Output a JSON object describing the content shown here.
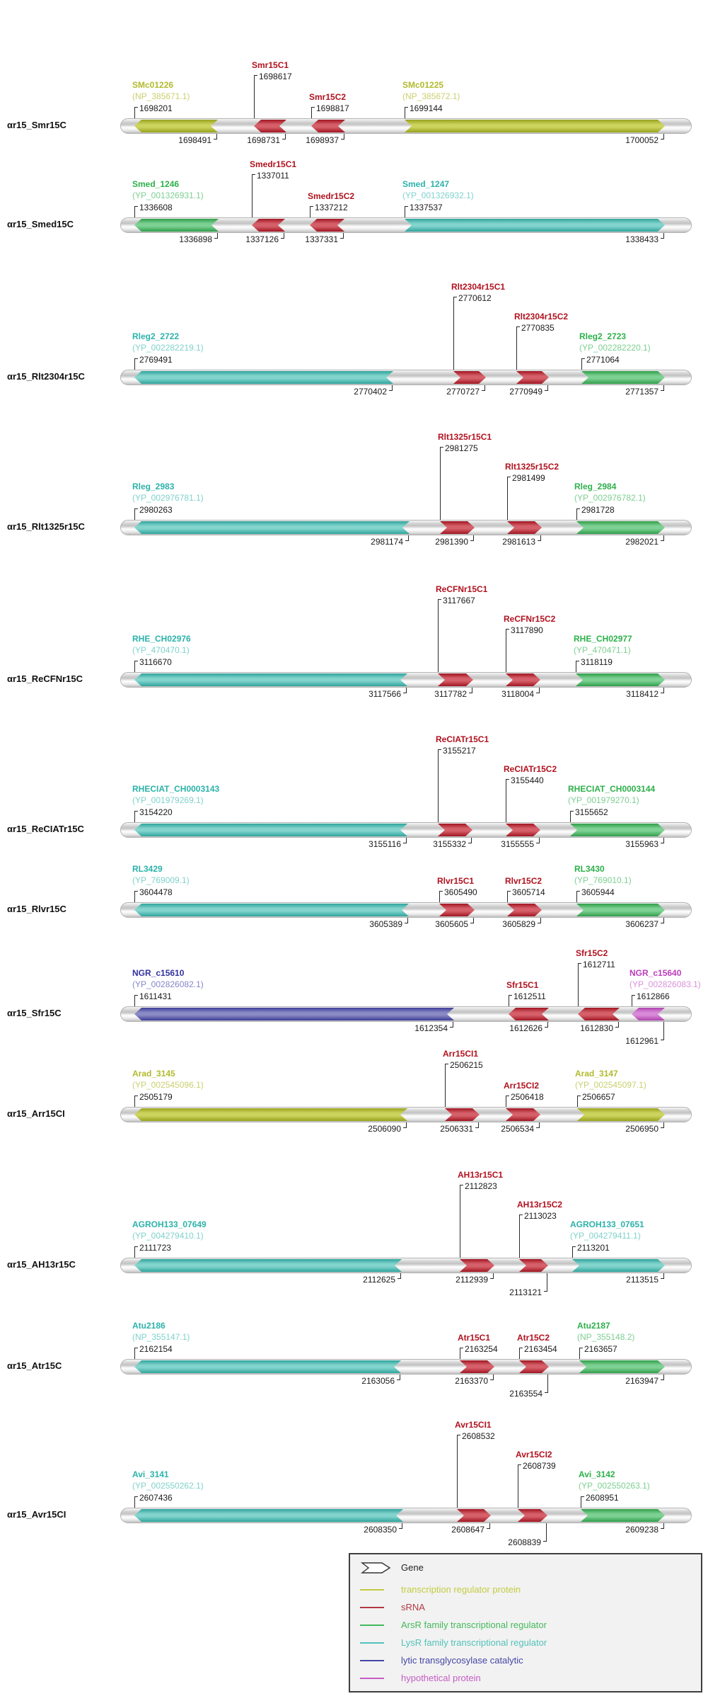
{
  "types": {
    "transcription_regulator": {
      "legend_label": "transcription regulator protein",
      "name_color": "#b2ba2e",
      "accession_color": "#c9d06e",
      "fill_light": "#ccd45e",
      "fill_dark": "#99a21d",
      "legend_color": "#c3cc3f"
    },
    "srna": {
      "legend_label": "sRNA",
      "name_color": "#b1121f",
      "accession_color": "#d17a81",
      "fill_light": "#d6606a",
      "fill_dark": "#a01622",
      "legend_color": "#b23842"
    },
    "arsr": {
      "legend_label": "ArsR family transcriptional regulator",
      "name_color": "#2eb04b",
      "accession_color": "#7dcf92",
      "fill_light": "#7ed194",
      "fill_dark": "#2f9e49",
      "legend_color": "#44b95c"
    },
    "lysr": {
      "legend_label": "LysR family transcriptional regulator",
      "name_color": "#2cb2aa",
      "accession_color": "#7fd2cb",
      "fill_light": "#82d4cd",
      "fill_dark": "#2fa49c",
      "legend_color": "#53c2ba"
    },
    "lytic": {
      "legend_label": "lytic transglycosylase catalytic",
      "name_color": "#3232a2",
      "accession_color": "#8686c8",
      "fill_light": "#8a8ac4",
      "fill_dark": "#3d3d9a",
      "legend_color": "#4646a6"
    },
    "hypothetical": {
      "legend_label": "hypothetical protein",
      "name_color": "#bc3ebc",
      "accession_color": "#d991d9",
      "fill_light": "#d98ad9",
      "fill_dark": "#b044b0",
      "legend_color": "#c55cc5"
    }
  },
  "legend": {
    "gene_label": "Gene",
    "order": [
      "transcription_regulator",
      "srna",
      "arsr",
      "lysr",
      "lytic",
      "hypothetical"
    ]
  },
  "rows": [
    {
      "label": "αr15_Smr15C",
      "genes": [
        {
          "name": "SMc01226",
          "accession": "(NP_385671.1)",
          "type": "transcription_regulator",
          "start": 1698201,
          "end": 1698491,
          "direction": "left",
          "label_tier": "gene"
        },
        {
          "name": "Smr15C1",
          "type": "srna",
          "start": 1698617,
          "end": 1698731,
          "direction": "left",
          "label_tier": "mid"
        },
        {
          "name": "Smr15C2",
          "type": "srna",
          "start": 1698817,
          "end": 1698937,
          "direction": "left",
          "label_tier": "low"
        },
        {
          "name": "SMc01225",
          "accession": "(NP_385672.1)",
          "type": "transcription_regulator",
          "start": 1699144,
          "end": 1700052,
          "direction": "right",
          "label_tier": "gene"
        }
      ]
    },
    {
      "label": "αr15_Smed15C",
      "genes": [
        {
          "name": "Smed_1246",
          "accession": "(YP_001326931.1)",
          "type": "arsr",
          "start": 1336608,
          "end": 1336898,
          "direction": "left",
          "label_tier": "gene"
        },
        {
          "name": "Smedr15C1",
          "type": "srna",
          "start": 1337011,
          "end": 1337126,
          "direction": "left",
          "label_tier": "mid"
        },
        {
          "name": "Smedr15C2",
          "type": "srna",
          "start": 1337212,
          "end": 1337331,
          "direction": "left",
          "label_tier": "low"
        },
        {
          "name": "Smed_1247",
          "accession": "(YP_001326932.1)",
          "type": "lysr",
          "start": 1337537,
          "end": 1338433,
          "direction": "right",
          "label_tier": "gene"
        }
      ]
    },
    {
      "label": "αr15_Rlt2304r15C",
      "genes": [
        {
          "name": "Rleg2_2722",
          "accession": "(YP_002282219.1)",
          "type": "lysr",
          "start": 2769491,
          "end": 2770402,
          "direction": "left",
          "label_tier": "gene"
        },
        {
          "name": "Rlt2304r15C1",
          "type": "srna",
          "start": 2770612,
          "end": 2770727,
          "direction": "right",
          "label_tier": "high"
        },
        {
          "name": "Rlt2304r15C2",
          "type": "srna",
          "start": 2770835,
          "end": 2770949,
          "direction": "right",
          "label_tier": "mid"
        },
        {
          "name": "Rleg2_2723",
          "accession": "(YP_002282220.1)",
          "type": "arsr",
          "start": 2771064,
          "end": 2771357,
          "direction": "right",
          "label_tier": "gene"
        }
      ]
    },
    {
      "label": "αr15_Rlt1325r15C",
      "genes": [
        {
          "name": "Rleg_2983",
          "accession": "(YP_002976781.1)",
          "type": "lysr",
          "start": 2980263,
          "end": 2981174,
          "direction": "left",
          "label_tier": "gene"
        },
        {
          "name": "Rlt1325r15C1",
          "type": "srna",
          "start": 2981275,
          "end": 2981390,
          "direction": "right",
          "label_tier": "high"
        },
        {
          "name": "Rlt1325r15C2",
          "type": "srna",
          "start": 2981499,
          "end": 2981613,
          "direction": "right",
          "label_tier": "mid"
        },
        {
          "name": "Rleg_2984",
          "accession": "(YP_002976782.1)",
          "type": "arsr",
          "start": 2981728,
          "end": 2982021,
          "direction": "right",
          "label_tier": "gene"
        }
      ]
    },
    {
      "label": "αr15_ReCFNr15C",
      "genes": [
        {
          "name": "RHE_CH02976",
          "accession": "(YP_470470.1)",
          "type": "lysr",
          "start": 3116670,
          "end": 3117566,
          "direction": "left",
          "label_tier": "gene"
        },
        {
          "name": "ReCFNr15C1",
          "type": "srna",
          "start": 3117667,
          "end": 3117782,
          "direction": "right",
          "label_tier": "high"
        },
        {
          "name": "ReCFNr15C2",
          "type": "srna",
          "start": 3117890,
          "end": 3118004,
          "direction": "right",
          "label_tier": "mid"
        },
        {
          "name": "RHE_CH02977",
          "accession": "(YP_470471.1)",
          "type": "arsr",
          "start": 3118119,
          "end": 3118412,
          "direction": "right",
          "label_tier": "gene"
        }
      ]
    },
    {
      "label": "αr15_ReCIATr15C",
      "genes": [
        {
          "name": "RHECIAT_CH0003143",
          "accession": "(YP_001979269.1)",
          "type": "lysr",
          "start": 3154220,
          "end": 3155116,
          "direction": "left",
          "label_tier": "gene"
        },
        {
          "name": "ReCIATr15C1",
          "type": "srna",
          "start": 3155217,
          "end": 3155332,
          "direction": "right",
          "label_tier": "high"
        },
        {
          "name": "ReCIATr15C2",
          "type": "srna",
          "start": 3155440,
          "end": 3155555,
          "direction": "right",
          "label_tier": "mid"
        },
        {
          "name": "RHECIAT_CH0003144",
          "accession": "(YP_001979270.1)",
          "type": "arsr",
          "start": 3155652,
          "end": 3155963,
          "direction": "right",
          "label_tier": "gene"
        }
      ]
    },
    {
      "label": "αr15_Rlvr15C",
      "genes": [
        {
          "name": "RL3429",
          "accession": "(YP_769009.1)",
          "type": "lysr",
          "start": 3604478,
          "end": 3605389,
          "direction": "left",
          "label_tier": "gene"
        },
        {
          "name": "Rlvr15C1",
          "type": "srna",
          "start": 3605490,
          "end": 3605605,
          "direction": "right",
          "label_tier": "low"
        },
        {
          "name": "Rlvr15C2",
          "type": "srna",
          "start": 3605714,
          "end": 3605829,
          "direction": "right",
          "label_tier": "low"
        },
        {
          "name": "RL3430",
          "accession": "(YP_769010.1)",
          "type": "arsr",
          "start": 3605944,
          "end": 3606237,
          "direction": "right",
          "label_tier": "gene"
        }
      ]
    },
    {
      "label": "αr15_Sfr15C",
      "genes": [
        {
          "name": "NGR_c15610",
          "accession": "(YP_002826082.1)",
          "type": "lytic",
          "start": 1611431,
          "end": 1612354,
          "direction": "left",
          "label_tier": "gene"
        },
        {
          "name": "Sfr15C1",
          "type": "srna",
          "start": 1612511,
          "end": 1612626,
          "direction": "left",
          "label_tier": "low"
        },
        {
          "name": "Sfr15C2",
          "type": "srna",
          "start": 1612711,
          "end": 1612830,
          "direction": "left",
          "label_tier": "mid"
        },
        {
          "name": "NGR_c15640",
          "accession": "(YP_002826083.1)",
          "type": "hypothetical",
          "start": 1612866,
          "end": 1612961,
          "direction": "left",
          "label_tier": "gene",
          "end_label_dropped": true
        }
      ]
    },
    {
      "label": "αr15_Arr15CI",
      "genes": [
        {
          "name": "Arad_3145",
          "accession": "(YP_002545096.1)",
          "type": "transcription_regulator",
          "start": 2505179,
          "end": 2506090,
          "direction": "left",
          "label_tier": "gene"
        },
        {
          "name": "Arr15CI1",
          "type": "srna",
          "start": 2506215,
          "end": 2506331,
          "direction": "right",
          "label_tier": "mid"
        },
        {
          "name": "Arr15CI2",
          "type": "srna",
          "start": 2506418,
          "end": 2506534,
          "direction": "right",
          "label_tier": "low"
        },
        {
          "name": "Arad_3147",
          "accession": "(YP_002545097.1)",
          "type": "transcription_regulator",
          "start": 2506657,
          "end": 2506950,
          "direction": "right",
          "label_tier": "gene"
        }
      ]
    },
    {
      "label": "αr15_AH13r15C",
      "genes": [
        {
          "name": "AGROH133_07649",
          "accession": "(YP_004279410.1)",
          "type": "lysr",
          "start": 2111723,
          "end": 2112625,
          "direction": "left",
          "label_tier": "gene"
        },
        {
          "name": "AH13r15C1",
          "type": "srna",
          "start": 2112823,
          "end": 2112939,
          "direction": "right",
          "label_tier": "high"
        },
        {
          "name": "AH13r15C2",
          "type": "srna",
          "start": 2113023,
          "end": 2113121,
          "direction": "right",
          "label_tier": "mid",
          "end_label_dropped": true
        },
        {
          "name": "AGROH133_07651",
          "accession": "(YP_004279411.1)",
          "type": "lysr",
          "start": 2113201,
          "end": 2113515,
          "direction": "right",
          "label_tier": "gene"
        }
      ]
    },
    {
      "label": "αr15_Atr15C",
      "genes": [
        {
          "name": "Atu2186",
          "accession": "(NP_355147.1)",
          "type": "lysr",
          "start": 2162154,
          "end": 2163056,
          "direction": "left",
          "label_tier": "gene"
        },
        {
          "name": "Atr15C1",
          "type": "srna",
          "start": 2163254,
          "end": 2163370,
          "direction": "right",
          "label_tier": "low"
        },
        {
          "name": "Atr15C2",
          "type": "srna",
          "start": 2163454,
          "end": 2163554,
          "direction": "right",
          "label_tier": "low",
          "end_label_dropped": true
        },
        {
          "name": "Atu2187",
          "accession": "(NP_355148.2)",
          "type": "arsr",
          "start": 2163657,
          "end": 2163947,
          "direction": "right",
          "label_tier": "gene"
        }
      ]
    },
    {
      "label": "αr15_Avr15CI",
      "genes": [
        {
          "name": "Avi_3141",
          "accession": "(YP_002550262.1)",
          "type": "lysr",
          "start": 2607436,
          "end": 2608350,
          "direction": "left",
          "label_tier": "gene"
        },
        {
          "name": "Avr15CI1",
          "type": "srna",
          "start": 2608532,
          "end": 2608647,
          "direction": "right",
          "label_tier": "high"
        },
        {
          "name": "Avr15CI2",
          "type": "srna",
          "start": 2608739,
          "end": 2608839,
          "direction": "right",
          "label_tier": "mid",
          "end_label_dropped": true
        },
        {
          "name": "Avi_3142",
          "accession": "(YP_002550263.1)",
          "type": "arsr",
          "start": 2608951,
          "end": 2609238,
          "direction": "right",
          "label_tier": "gene"
        }
      ]
    }
  ]
}
